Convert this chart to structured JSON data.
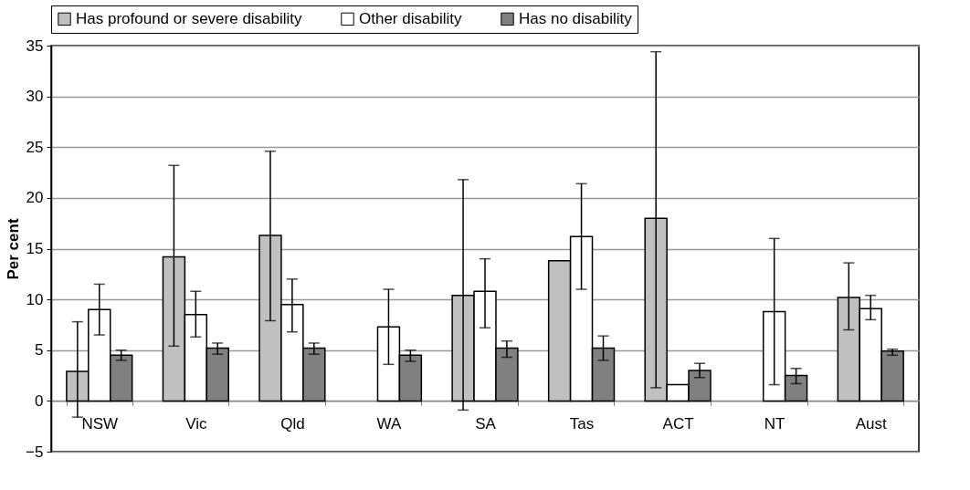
{
  "chart_data": {
    "type": "bar",
    "ylabel": "Per cent",
    "categories": [
      "NSW",
      "Vic",
      "Qld",
      "WA",
      "SA",
      "Tas",
      "ACT",
      "NT",
      "Aust"
    ],
    "series": [
      {
        "name": "Has profound or severe disability",
        "color": "#c0c0c0",
        "values": [
          2.9,
          14.2,
          16.3,
          null,
          10.4,
          13.8,
          18.0,
          null,
          10.2
        ],
        "errors": [
          [
            -1.6,
            7.8
          ],
          [
            5.4,
            23.2
          ],
          [
            7.9,
            24.6
          ],
          null,
          [
            -0.9,
            21.8
          ],
          null,
          [
            1.3,
            34.4
          ],
          null,
          [
            7.0,
            13.6
          ]
        ]
      },
      {
        "name": "Other disability",
        "color": "#ffffff",
        "values": [
          9.0,
          8.5,
          9.5,
          7.3,
          10.8,
          16.2,
          1.6,
          8.8,
          9.1
        ],
        "errors": [
          [
            6.5,
            11.5
          ],
          [
            6.3,
            10.8
          ],
          [
            6.8,
            12.0
          ],
          [
            3.6,
            11.0
          ],
          [
            7.2,
            14.0
          ],
          [
            11.0,
            21.4
          ],
          null,
          [
            1.6,
            16.0
          ],
          [
            8.0,
            10.4
          ]
        ]
      },
      {
        "name": "Has no disability",
        "color": "#808080",
        "values": [
          4.5,
          5.2,
          5.2,
          4.5,
          5.2,
          5.2,
          3.0,
          2.5,
          4.9
        ],
        "errors": [
          [
            4.0,
            5.0
          ],
          [
            4.6,
            5.7
          ],
          [
            4.6,
            5.7
          ],
          [
            3.9,
            5.0
          ],
          [
            4.3,
            5.9
          ],
          [
            4.0,
            6.4
          ],
          [
            2.3,
            3.7
          ],
          [
            1.7,
            3.2
          ],
          [
            4.5,
            5.1
          ]
        ]
      }
    ],
    "ylim": [
      -5,
      35
    ],
    "yticks": [
      -5,
      0,
      5,
      10,
      15,
      20,
      25,
      30,
      35
    ],
    "grid": "y",
    "legend": "top"
  }
}
